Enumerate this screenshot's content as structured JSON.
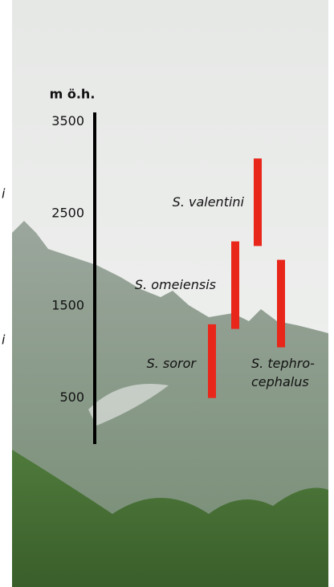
{
  "chart_data": {
    "type": "range-bar",
    "y_label": "m ö.h.",
    "ylim": [
      0,
      3600
    ],
    "yticks": [
      3500,
      2500,
      1500,
      500
    ],
    "side_labels": [
      "i",
      "i"
    ],
    "series": [
      {
        "name": "S. valentini",
        "color": "#e8261a",
        "values": [
          2150,
          3100
        ]
      },
      {
        "name": "S. omeiensis",
        "color": "#e8261a",
        "values": [
          1250,
          2200
        ]
      },
      {
        "name": "S. soror",
        "color": "#e8261a",
        "values": [
          500,
          1300
        ]
      },
      {
        "name": "S. tephro-\ncephalus",
        "color": "#e8261a",
        "values": [
          1050,
          2000
        ]
      }
    ]
  }
}
